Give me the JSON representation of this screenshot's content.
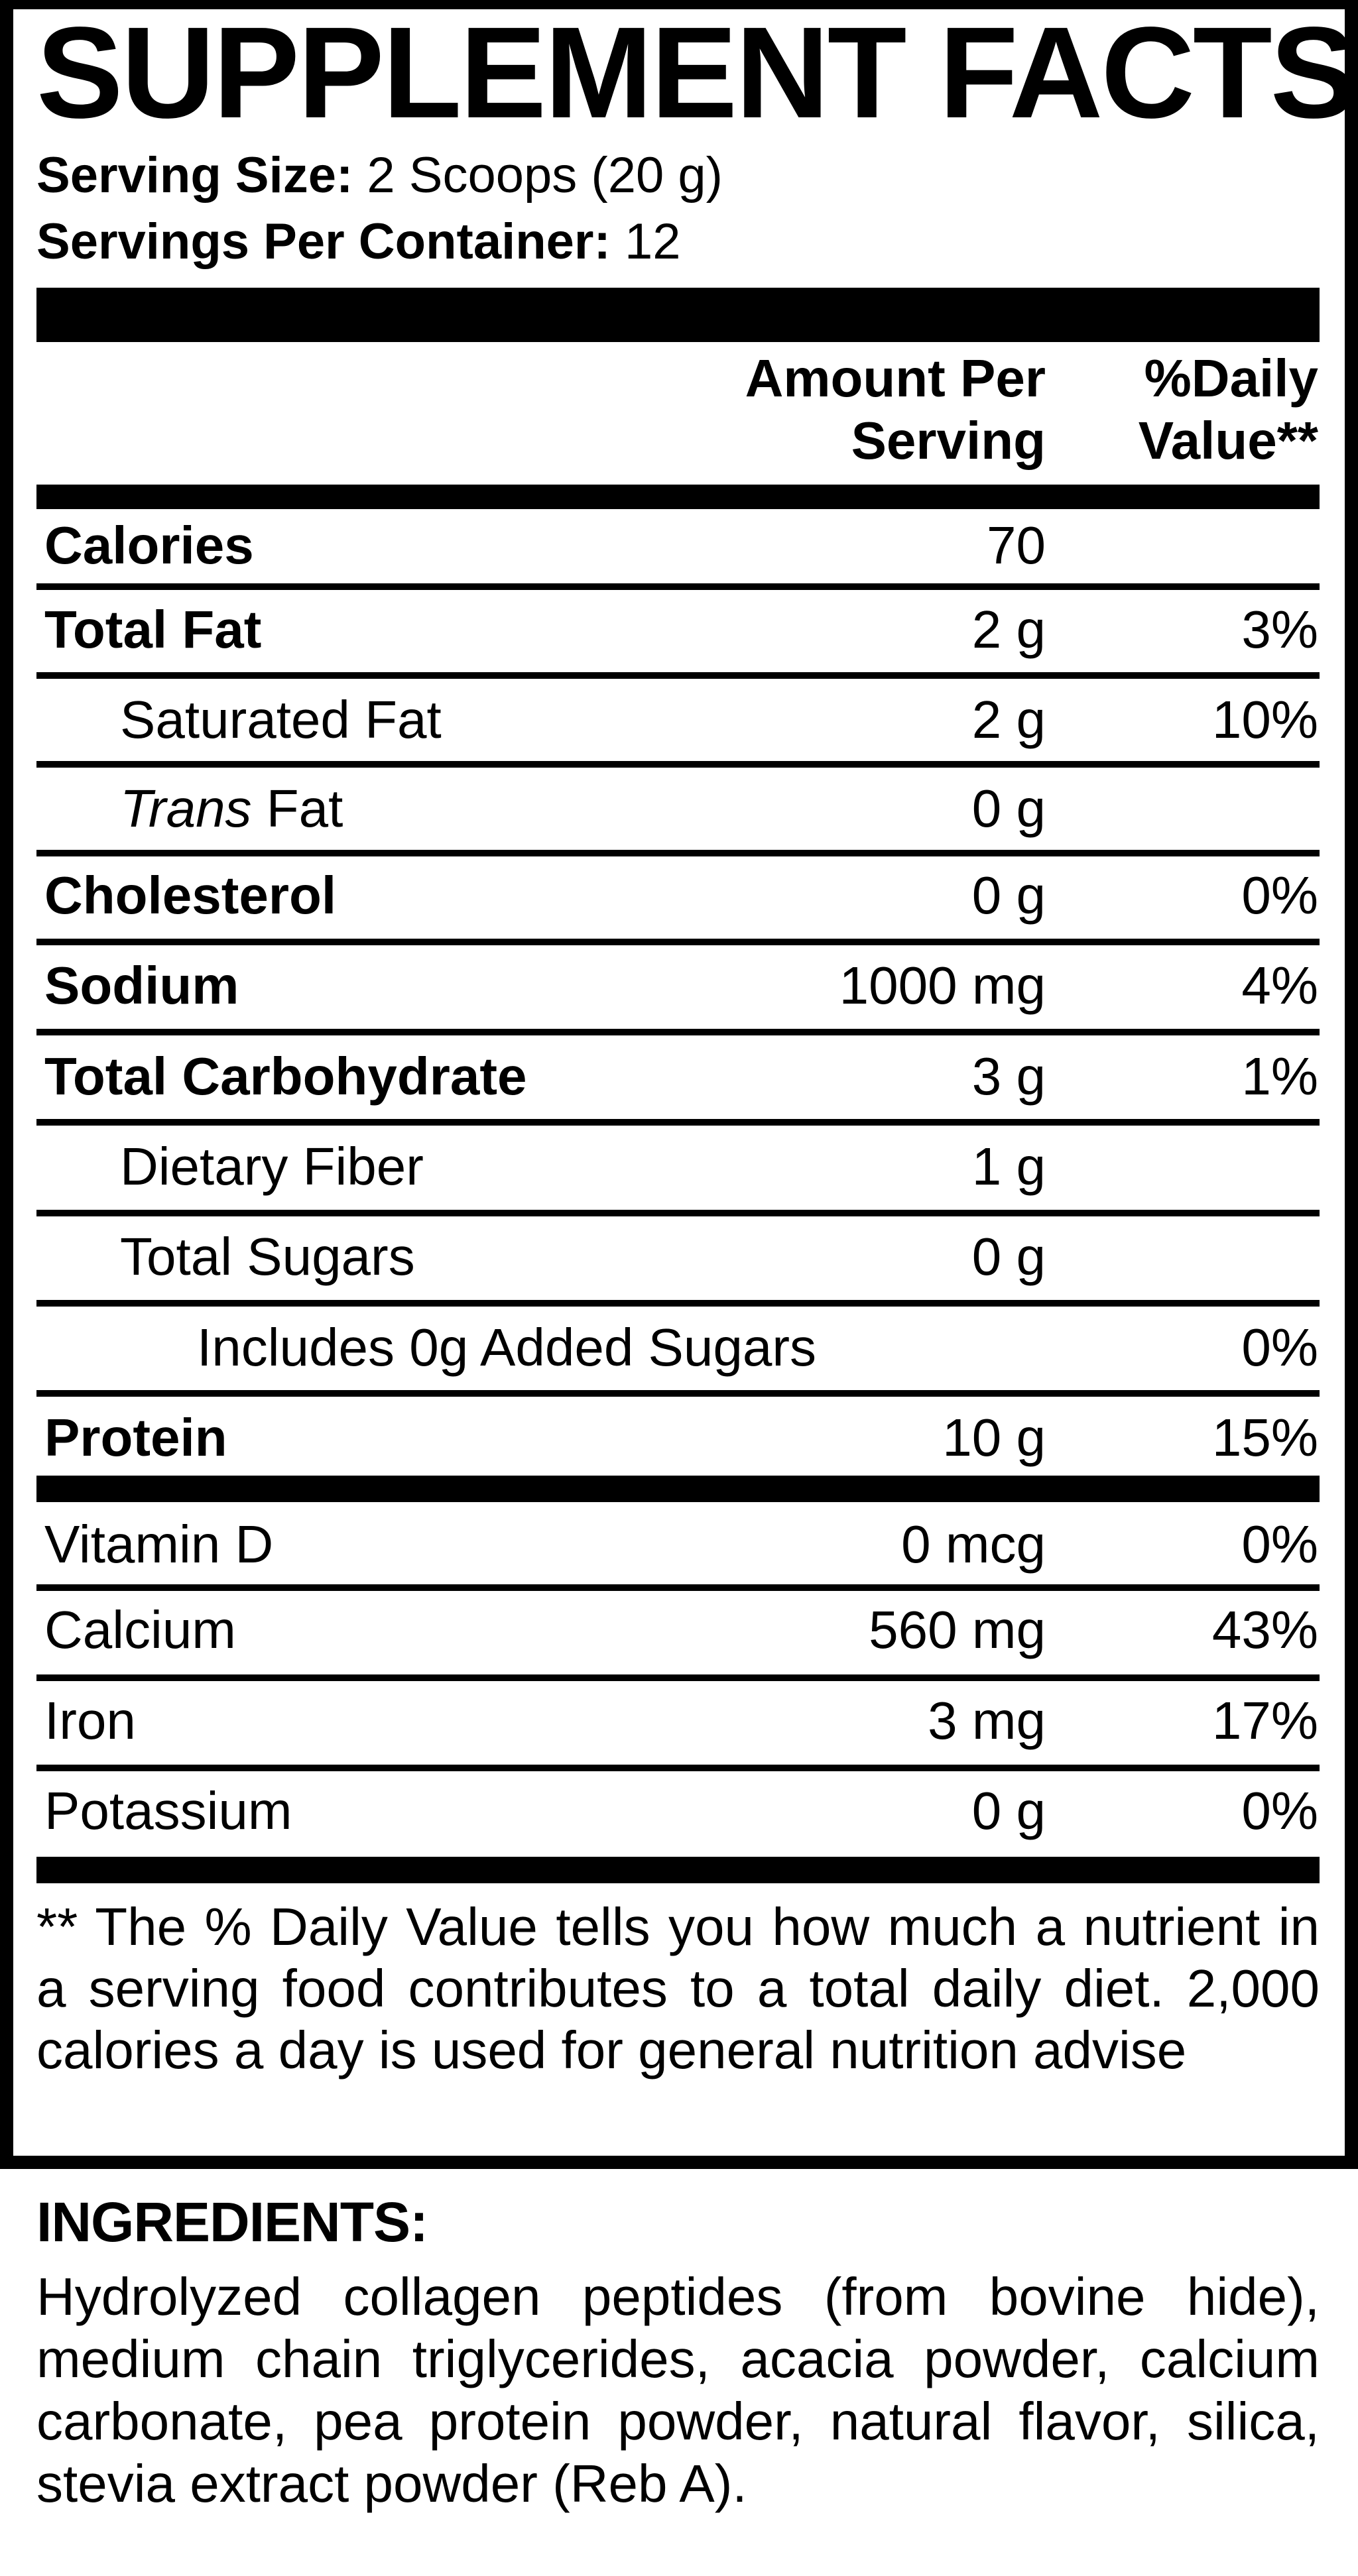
{
  "title": "SUPPLEMENT FACTS",
  "serving_size": {
    "label": "Serving Size:",
    "value": "2 Scoops (20 g)"
  },
  "servings_per_container": {
    "label": "Servings Per Container:",
    "value": "12"
  },
  "header": {
    "amount_line1": "Amount Per",
    "amount_line2": "Serving",
    "dv_line1": "%Daily",
    "dv_line2": "Value**"
  },
  "nutrients": [
    {
      "name": "Calories",
      "amount": "70",
      "dv": "",
      "style": "bold"
    },
    {
      "name": "Total Fat",
      "amount": "2 g",
      "dv": "3%",
      "style": "bold"
    },
    {
      "name": "Saturated Fat",
      "amount": "2 g",
      "dv": "10%",
      "style": "indent"
    },
    {
      "name_italic": "Trans",
      "name": " Fat",
      "amount": "0 g",
      "dv": "",
      "style": "indent"
    },
    {
      "name": "Cholesterol",
      "amount": "0 g",
      "dv": "0%",
      "style": "bold"
    },
    {
      "name": "Sodium",
      "amount": "1000 mg",
      "dv": "4%",
      "style": "bold"
    },
    {
      "name": "Total Carbohydrate",
      "amount": "3 g",
      "dv": "1%",
      "style": "bold"
    },
    {
      "name": "Dietary Fiber",
      "amount": "1 g",
      "dv": "",
      "style": "indent"
    },
    {
      "name": "Total Sugars",
      "amount": "0 g",
      "dv": "",
      "style": "indent"
    },
    {
      "name": "Includes 0g Added Sugars",
      "amount": "",
      "dv": "0%",
      "style": "indent2"
    },
    {
      "name": "Protein",
      "amount": "10 g",
      "dv": "15%",
      "style": "bold"
    }
  ],
  "vitamins": [
    {
      "name": "Vitamin D",
      "amount": "0 mcg",
      "dv": "0%"
    },
    {
      "name": "Calcium",
      "amount": "560 mg",
      "dv": "43%"
    },
    {
      "name": "Iron",
      "amount": "3 mg",
      "dv": "17%"
    },
    {
      "name": "Potassium",
      "amount": "0 g",
      "dv": "0%"
    }
  ],
  "footnote": "** The % Daily Value tells you how much a nutrient in a serving food contributes to a total daily diet. 2,000 calories a day is used for general nutrition advise",
  "ingredients": {
    "heading": "INGREDIENTS:",
    "text": "Hydrolyzed collagen peptides (from bovine hide), medium chain triglycerides, acacia powder, calcium carbonate, pea protein powder, natural flavor, silica, stevia extract powder (Reb A)."
  }
}
